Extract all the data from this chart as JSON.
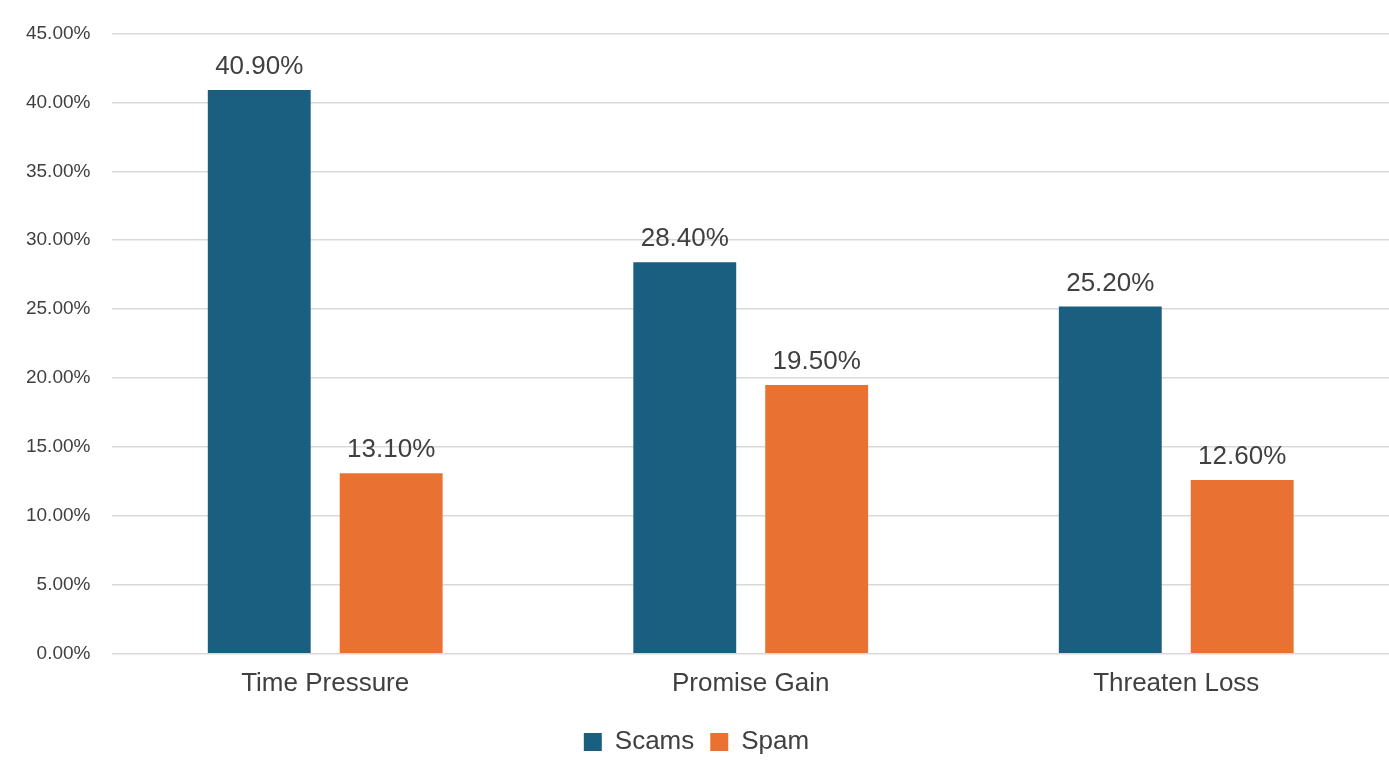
{
  "chart_data": {
    "type": "bar",
    "categories": [
      "Time Pressure",
      "Promise Gain",
      "Threaten Loss"
    ],
    "series": [
      {
        "name": "Scams",
        "color": "#1a5f80",
        "values": [
          40.9,
          28.4,
          25.2
        ],
        "value_labels": [
          "40.90%",
          "28.40%",
          "25.20%"
        ]
      },
      {
        "name": "Spam",
        "color": "#e97132",
        "values": [
          13.1,
          19.5,
          12.6
        ],
        "value_labels": [
          "13.10%",
          "19.50%",
          "12.60%"
        ]
      }
    ],
    "ylim": [
      0,
      45
    ],
    "yticks": [
      {
        "value": 0,
        "label": "0.00%"
      },
      {
        "value": 5,
        "label": "5.00%"
      },
      {
        "value": 10,
        "label": "10.00%"
      },
      {
        "value": 15,
        "label": "15.00%"
      },
      {
        "value": 20,
        "label": "20.00%"
      },
      {
        "value": 25,
        "label": "25.00%"
      },
      {
        "value": 30,
        "label": "30.00%"
      },
      {
        "value": 35,
        "label": "35.00%"
      },
      {
        "value": 40,
        "label": "40.00%"
      },
      {
        "value": 45,
        "label": "45.00%"
      }
    ],
    "grid": "y",
    "legend": "bottom"
  }
}
